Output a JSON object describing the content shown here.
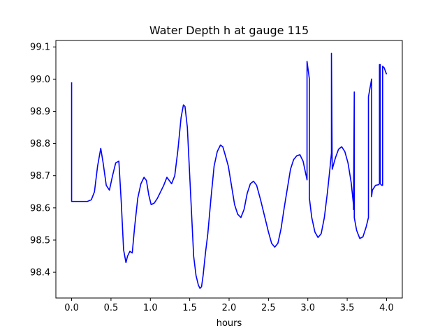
{
  "chart_data": {
    "type": "line",
    "title": "Water Depth h at gauge 115",
    "xlabel": "hours",
    "ylabel": "",
    "xlim": [
      -0.2,
      4.2
    ],
    "ylim": [
      98.32,
      99.12
    ],
    "xticks": [
      0.0,
      0.5,
      1.0,
      1.5,
      2.0,
      2.5,
      3.0,
      3.5,
      4.0
    ],
    "xtick_labels": [
      "0.0",
      "0.5",
      "1.0",
      "1.5",
      "2.0",
      "2.5",
      "3.0",
      "3.5",
      "4.0"
    ],
    "yticks": [
      98.4,
      98.5,
      98.6,
      98.7,
      98.8,
      98.9,
      99.0,
      99.1
    ],
    "ytick_labels": [
      "98.4",
      "98.5",
      "98.6",
      "98.7",
      "98.8",
      "98.9",
      "99.0",
      "99.1"
    ],
    "grid": false,
    "line_color": "#0000ff",
    "series": [
      {
        "x": [
          0.0,
          0.0,
          0.01,
          0.1,
          0.2,
          0.25,
          0.29,
          0.33,
          0.37,
          0.4,
          0.44,
          0.48,
          0.52,
          0.56,
          0.6,
          0.63,
          0.66,
          0.69,
          0.71,
          0.74,
          0.77,
          0.8,
          0.84,
          0.88,
          0.92,
          0.95,
          0.98,
          1.01,
          1.05,
          1.09,
          1.13,
          1.17,
          1.21,
          1.24,
          1.27,
          1.31,
          1.35,
          1.39,
          1.42,
          1.44,
          1.47,
          1.51,
          1.55,
          1.58,
          1.61,
          1.63,
          1.65,
          1.67,
          1.7,
          1.73,
          1.77,
          1.81,
          1.85,
          1.89,
          1.92,
          1.95,
          1.99,
          2.03,
          2.07,
          2.11,
          2.15,
          2.19,
          2.23,
          2.27,
          2.31,
          2.35,
          2.4,
          2.45,
          2.5,
          2.54,
          2.58,
          2.62,
          2.66,
          2.7,
          2.74,
          2.78,
          2.82,
          2.86,
          2.9,
          2.94,
          2.97,
          2.99,
          2.99,
          3.02,
          3.02,
          3.05,
          3.09,
          3.13,
          3.17,
          3.21,
          3.25,
          3.28,
          3.3,
          3.3,
          3.31,
          3.35,
          3.39,
          3.43,
          3.47,
          3.51,
          3.55,
          3.58,
          3.58,
          3.59,
          3.59,
          3.62,
          3.66,
          3.7,
          3.74,
          3.77,
          3.77,
          3.81,
          3.81,
          3.82,
          3.86,
          3.9,
          3.91,
          3.91,
          3.92,
          3.92,
          3.94,
          3.95,
          3.95,
          3.97,
          4.0
        ],
        "y": [
          98.99,
          98.62,
          98.62,
          98.62,
          98.62,
          98.625,
          98.65,
          98.73,
          98.785,
          98.74,
          98.67,
          98.655,
          98.7,
          98.74,
          98.745,
          98.62,
          98.47,
          98.43,
          98.45,
          98.465,
          98.46,
          98.54,
          98.63,
          98.675,
          98.695,
          98.685,
          98.64,
          98.61,
          98.615,
          98.63,
          98.65,
          98.67,
          98.695,
          98.685,
          98.675,
          98.7,
          98.78,
          98.88,
          98.92,
          98.915,
          98.85,
          98.65,
          98.45,
          98.39,
          98.36,
          98.35,
          98.355,
          98.39,
          98.46,
          98.52,
          98.63,
          98.73,
          98.775,
          98.795,
          98.79,
          98.765,
          98.73,
          98.67,
          98.61,
          98.58,
          98.57,
          98.595,
          98.645,
          98.675,
          98.683,
          98.67,
          98.625,
          98.575,
          98.525,
          98.49,
          98.478,
          98.49,
          98.535,
          98.6,
          98.66,
          98.72,
          98.75,
          98.762,
          98.765,
          98.745,
          98.71,
          98.687,
          99.055,
          99.0,
          98.63,
          98.57,
          98.525,
          98.508,
          98.52,
          98.57,
          98.65,
          98.72,
          98.77,
          99.08,
          98.72,
          98.755,
          98.782,
          98.79,
          98.775,
          98.74,
          98.68,
          98.61,
          98.595,
          98.96,
          98.57,
          98.53,
          98.505,
          98.51,
          98.54,
          98.57,
          98.945,
          99.0,
          98.635,
          98.655,
          98.67,
          98.672,
          98.675,
          99.045,
          99.045,
          98.675,
          98.67,
          98.67,
          99.04,
          99.035,
          99.015
        ]
      }
    ]
  }
}
